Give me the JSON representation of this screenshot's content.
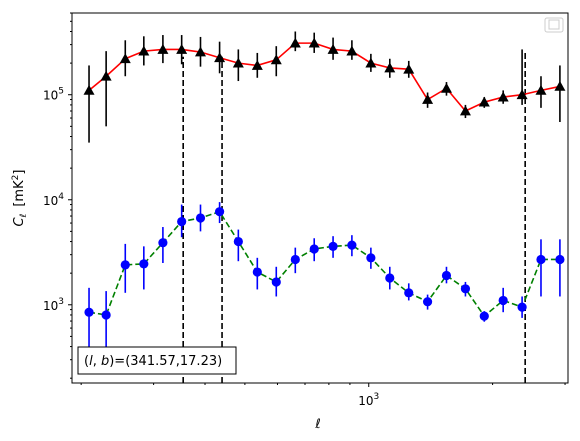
{
  "chart_data": {
    "type": "scatter",
    "title": "",
    "xlabel": "ℓ",
    "ylabel": "C",
    "ylabel_sub": "ℓ",
    "ylabel_unit_prefix": "[mK",
    "ylabel_unit_sup": "2",
    "ylabel_unit_suffix": "]",
    "xscale": "log",
    "yscale": "log",
    "xlim": [
      190,
      3050
    ],
    "ylim": [
      180,
      600000
    ],
    "x_tick_labels": [
      {
        "base": "10",
        "exp": "3",
        "value": 1000
      }
    ],
    "y_tick_labels": [
      {
        "base": "10",
        "exp": "3",
        "value": 1000
      },
      {
        "base": "10",
        "exp": "4",
        "value": 10000
      },
      {
        "base": "10",
        "exp": "5",
        "value": 100000
      }
    ],
    "legend": {
      "placement": "top-right",
      "entries": []
    },
    "annotation": {
      "prefix": "(",
      "l_symbol": "l",
      "sep": ", ",
      "b_symbol": "b",
      "suffix": ")=(341.57,17.23)",
      "placement": "bottom-left"
    },
    "vlines": [
      {
        "x": 354,
        "y_top": 230000
      },
      {
        "x": 440,
        "y_top": 230000
      },
      {
        "x": 2400,
        "y_top": 260000
      }
    ],
    "series": [
      {
        "marker": "triangle",
        "color": "#000000",
        "line_color": "#ff0000",
        "line_style": "solid",
        "x": [
          209,
          230,
          256,
          284,
          316,
          351,
          390,
          434,
          482,
          536,
          596,
          663,
          737,
          819,
          910,
          1012,
          1125,
          1251,
          1390,
          1545,
          1718,
          1909,
          2122,
          2359,
          2622,
          2915
        ],
        "y": [
          110000,
          150000,
          220000,
          260000,
          270000,
          270000,
          255000,
          225000,
          200000,
          190000,
          215000,
          310000,
          310000,
          270000,
          260000,
          200000,
          180000,
          175000,
          90000,
          115000,
          70000,
          85000,
          95000,
          100000,
          110000,
          120000
        ],
        "yerr_low": [
          35000,
          50000,
          150000,
          190000,
          200000,
          195000,
          185000,
          160000,
          135000,
          145000,
          150000,
          260000,
          250000,
          215000,
          215000,
          165000,
          145000,
          145000,
          75000,
          98000,
          60000,
          75000,
          82000,
          80000,
          75000,
          55000
        ],
        "yerr_high": [
          190000,
          260000,
          330000,
          360000,
          370000,
          370000,
          355000,
          320000,
          270000,
          250000,
          290000,
          400000,
          390000,
          350000,
          330000,
          245000,
          220000,
          210000,
          105000,
          132000,
          80000,
          95000,
          110000,
          270000,
          150000,
          190000
        ]
      },
      {
        "marker": "circle",
        "color": "#0000ff",
        "line_color": "#008000",
        "line_style": "dashed",
        "x": [
          209,
          230,
          256,
          284,
          316,
          351,
          390,
          434,
          482,
          536,
          596,
          663,
          737,
          819,
          910,
          1012,
          1125,
          1251,
          1390,
          1545,
          1718,
          1909,
          2122,
          2359,
          2622,
          2915
        ],
        "y": [
          850,
          800,
          2400,
          2450,
          3900,
          6200,
          6700,
          7700,
          4000,
          2050,
          1650,
          2700,
          3400,
          3600,
          3700,
          2800,
          1800,
          1300,
          1070,
          1900,
          1420,
          780,
          1100,
          950,
          2700,
          2700
        ],
        "yerr_low": [
          400,
          350,
          1300,
          1400,
          2500,
          4400,
          5000,
          6000,
          2600,
          1400,
          1200,
          2000,
          2600,
          2800,
          2900,
          2200,
          1400,
          1100,
          900,
          1600,
          1200,
          690,
          850,
          750,
          1200,
          1200
        ],
        "yerr_high": [
          1450,
          1350,
          3800,
          3600,
          5500,
          9000,
          9000,
          9500,
          5200,
          2800,
          2300,
          3500,
          4300,
          4500,
          4600,
          3500,
          2300,
          1600,
          1250,
          2300,
          1650,
          870,
          1450,
          1200,
          4200,
          4200
        ]
      }
    ]
  }
}
